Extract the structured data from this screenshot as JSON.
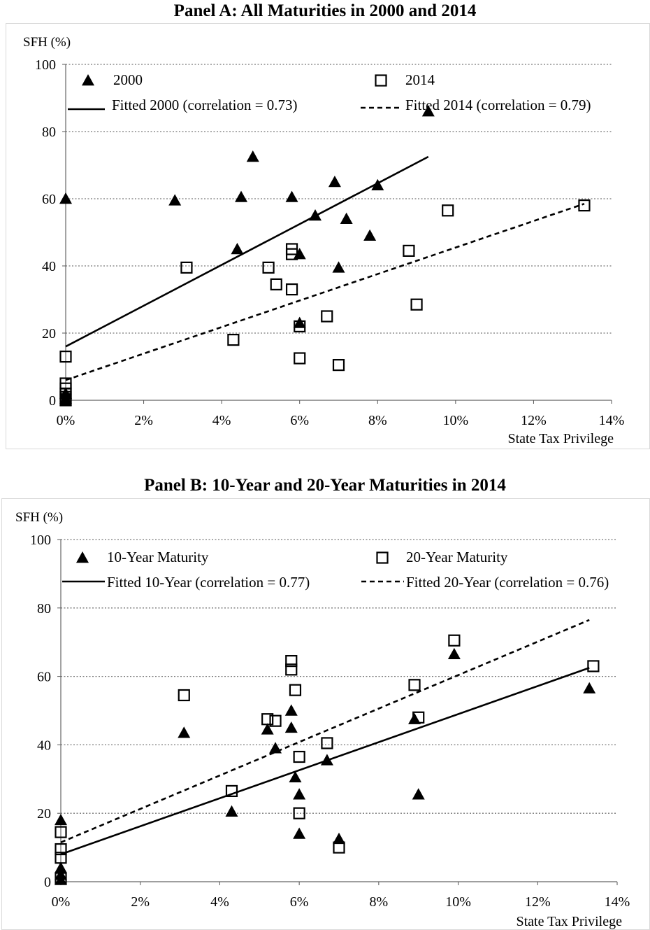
{
  "chart_data": [
    {
      "type": "scatter",
      "title": "Panel A: All Maturities in 2000 and 2014",
      "ylabel": "SFH (%)",
      "xlabel": "State Tax Privilege",
      "xlim": [
        0,
        0.14
      ],
      "ylim": [
        0,
        100
      ],
      "x_ticks": [
        "0%",
        "2%",
        "4%",
        "6%",
        "8%",
        "10%",
        "12%",
        "14%"
      ],
      "y_ticks": [
        "0",
        "20",
        "40",
        "60",
        "80",
        "100"
      ],
      "grid": "horizontal dotted",
      "legend_position": "top",
      "series": [
        {
          "name": "2000",
          "marker": "triangle-filled",
          "points": [
            [
              0.0,
              60.0
            ],
            [
              0.028,
              59.5
            ],
            [
              0.044,
              45.0
            ],
            [
              0.045,
              60.5
            ],
            [
              0.048,
              72.5
            ],
            [
              0.058,
              60.5
            ],
            [
              0.06,
              43.5
            ],
            [
              0.06,
              23.0
            ],
            [
              0.064,
              55.0
            ],
            [
              0.069,
              65.0
            ],
            [
              0.07,
              39.5
            ],
            [
              0.072,
              54.0
            ],
            [
              0.078,
              49.0
            ],
            [
              0.08,
              64.0
            ],
            [
              0.093,
              86.0
            ],
            [
              0.0,
              2.0
            ],
            [
              0.0,
              0.5
            ],
            [
              0.0,
              0.0
            ]
          ]
        },
        {
          "name": "2014",
          "marker": "square-open",
          "points": [
            [
              0.0,
              13.0
            ],
            [
              0.0,
              5.0
            ],
            [
              0.0,
              3.5
            ],
            [
              0.0,
              2.0
            ],
            [
              0.0,
              1.0
            ],
            [
              0.0,
              0.0
            ],
            [
              0.031,
              39.5
            ],
            [
              0.043,
              18.0
            ],
            [
              0.052,
              39.5
            ],
            [
              0.054,
              34.5
            ],
            [
              0.058,
              45.0
            ],
            [
              0.058,
              43.5
            ],
            [
              0.058,
              33.0
            ],
            [
              0.06,
              22.0
            ],
            [
              0.06,
              12.5
            ],
            [
              0.067,
              25.0
            ],
            [
              0.07,
              10.5
            ],
            [
              0.088,
              44.5
            ],
            [
              0.09,
              28.5
            ],
            [
              0.098,
              56.5
            ],
            [
              0.133,
              58.0
            ]
          ]
        },
        {
          "name": "Fitted 2000 (correlation = 0.73)",
          "style": "solid",
          "line": [
            [
              0.0,
              16.0
            ],
            [
              0.093,
              72.5
            ]
          ]
        },
        {
          "name": "Fitted 2014 (correlation = 0.79)",
          "style": "dashed",
          "line": [
            [
              0.0,
              6.0
            ],
            [
              0.133,
              58.5
            ]
          ]
        }
      ]
    },
    {
      "type": "scatter",
      "title": "Panel B: 10-Year and 20-Year Maturities in 2014",
      "ylabel": "SFH (%)",
      "xlabel": "State Tax Privilege",
      "xlim": [
        0,
        0.14
      ],
      "ylim": [
        0,
        100
      ],
      "x_ticks": [
        "0%",
        "2%",
        "4%",
        "6%",
        "8%",
        "10%",
        "12%",
        "14%"
      ],
      "y_ticks": [
        "0",
        "20",
        "40",
        "60",
        "80",
        "100"
      ],
      "grid": "horizontal dotted",
      "legend_position": "top",
      "series": [
        {
          "name": "10-Year Maturity",
          "marker": "triangle-filled",
          "points": [
            [
              0.0,
              18.0
            ],
            [
              0.0,
              4.0
            ],
            [
              0.0,
              2.0
            ],
            [
              0.0,
              0.5
            ],
            [
              0.031,
              43.5
            ],
            [
              0.043,
              20.5
            ],
            [
              0.052,
              44.5
            ],
            [
              0.054,
              39.0
            ],
            [
              0.058,
              50.0
            ],
            [
              0.058,
              45.0
            ],
            [
              0.059,
              30.5
            ],
            [
              0.06,
              25.5
            ],
            [
              0.06,
              14.0
            ],
            [
              0.067,
              35.5
            ],
            [
              0.07,
              12.5
            ],
            [
              0.089,
              47.5
            ],
            [
              0.09,
              25.5
            ],
            [
              0.099,
              66.5
            ],
            [
              0.133,
              56.5
            ]
          ]
        },
        {
          "name": "20-Year Maturity",
          "marker": "square-open",
          "points": [
            [
              0.0,
              14.5
            ],
            [
              0.0,
              9.5
            ],
            [
              0.0,
              7.0
            ],
            [
              0.0,
              1.0
            ],
            [
              0.031,
              54.5
            ],
            [
              0.043,
              26.5
            ],
            [
              0.052,
              47.5
            ],
            [
              0.054,
              47.0
            ],
            [
              0.058,
              64.5
            ],
            [
              0.058,
              62.0
            ],
            [
              0.059,
              56.0
            ],
            [
              0.06,
              36.5
            ],
            [
              0.06,
              20.0
            ],
            [
              0.067,
              40.5
            ],
            [
              0.07,
              10.0
            ],
            [
              0.089,
              57.5
            ],
            [
              0.09,
              48.0
            ],
            [
              0.099,
              70.5
            ],
            [
              0.134,
              63.0
            ]
          ]
        },
        {
          "name": "Fitted 10-Year (correlation = 0.77)",
          "style": "solid",
          "line": [
            [
              0.0,
              8.0
            ],
            [
              0.133,
              62.5
            ]
          ]
        },
        {
          "name": "Fitted 20-Year (correlation = 0.76)",
          "style": "dashed",
          "line": [
            [
              0.0,
              11.5
            ],
            [
              0.133,
              76.5
            ]
          ]
        }
      ]
    }
  ]
}
